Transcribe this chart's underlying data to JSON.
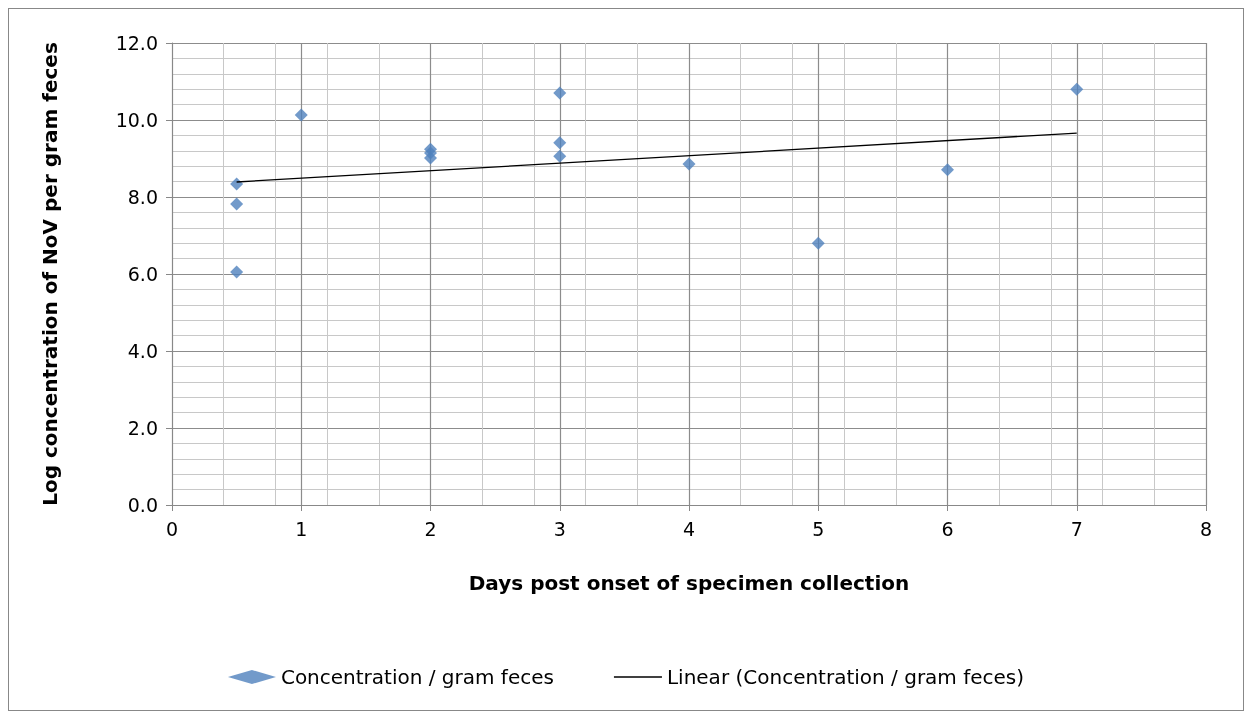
{
  "chart_data": {
    "type": "scatter",
    "xlabel": "Days post onset of specimen collection",
    "ylabel": "Log concentration of NoV per gram feces",
    "xlim": [
      0,
      8
    ],
    "xticks": [
      0,
      1,
      2,
      3,
      4,
      5,
      6,
      7,
      8
    ],
    "ylim": [
      0,
      12
    ],
    "yticks": [
      {
        "value": 0,
        "label": "0.0"
      },
      {
        "value": 2,
        "label": "2.0"
      },
      {
        "value": 4,
        "label": "4.0"
      },
      {
        "value": 6,
        "label": "6.0"
      },
      {
        "value": 8,
        "label": "8.0"
      },
      {
        "value": 10,
        "label": "10.0"
      },
      {
        "value": 12,
        "label": "12.0"
      }
    ],
    "grid": true,
    "legend": "bottom",
    "marker": "diamond",
    "series": [
      {
        "name": "Concentration / gram feces",
        "color": "#4f81bd",
        "x": [
          0.5,
          0.5,
          0.5,
          1,
          2,
          2,
          2,
          3,
          3,
          3,
          4,
          5,
          6,
          7
        ],
        "values": [
          8.34,
          7.82,
          6.05,
          10.13,
          9.24,
          9.14,
          9.01,
          10.7,
          9.41,
          9.06,
          8.86,
          6.8,
          8.71,
          10.8
        ]
      },
      {
        "name": "Linear (Concentration / gram feces)",
        "type": "line",
        "color": "#000000",
        "marker": "none",
        "line_style": "solid",
        "x": [
          0.5,
          7
        ],
        "values": [
          8.39,
          9.66
        ]
      }
    ]
  }
}
